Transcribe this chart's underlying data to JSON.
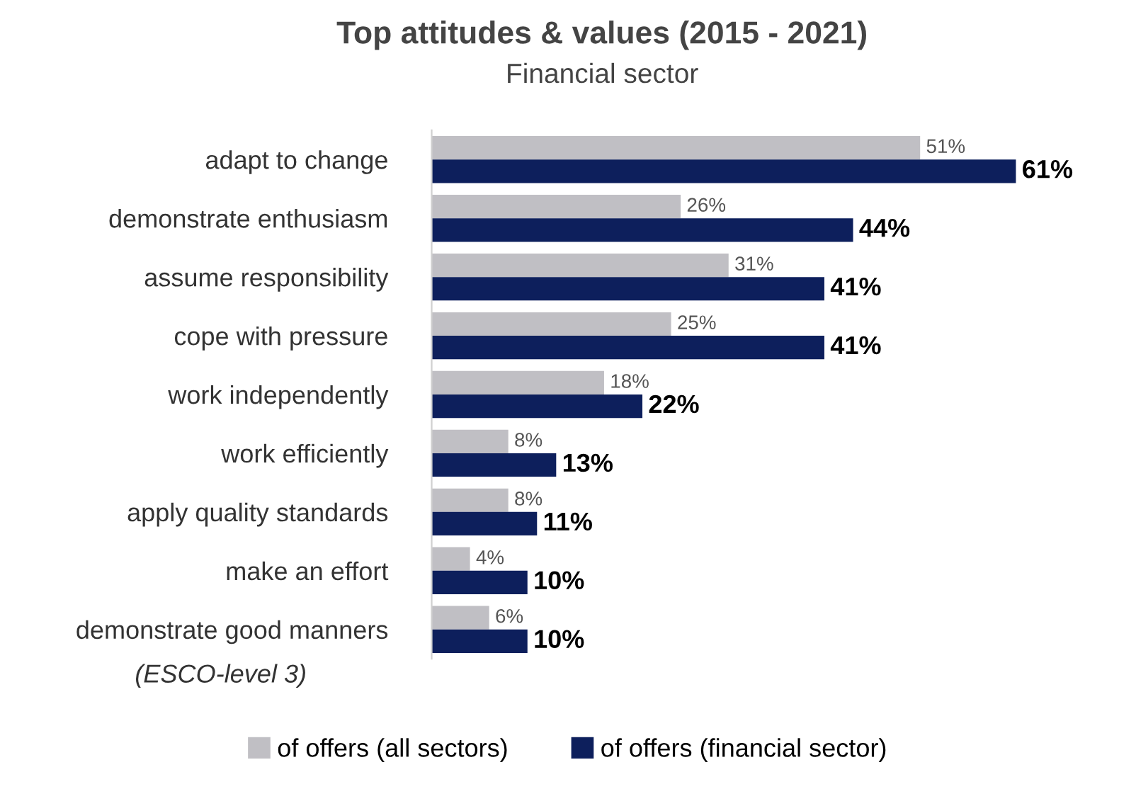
{
  "chart_data": {
    "type": "bar",
    "orientation": "horizontal",
    "title": "Top attitudes & values (2015 - 2021)",
    "subtitle": "Financial sector",
    "categories": [
      "adapt to change",
      "demonstrate enthusiasm",
      "assume responsibility",
      "cope with pressure",
      "work independently",
      "work efficiently",
      "apply quality standards",
      "make an effort",
      "demonstrate good manners"
    ],
    "series": [
      {
        "name": "of offers (all sectors)",
        "color": "#c0bfc4",
        "values": [
          51,
          26,
          31,
          25,
          18,
          8,
          8,
          4,
          6
        ],
        "value_labels": [
          "51%",
          "26%",
          "31%",
          "25%",
          "18%",
          "8%",
          "8%",
          "4%",
          "6%"
        ]
      },
      {
        "name": "of offers (financial sector)",
        "color": "#0d1f5c",
        "values": [
          61,
          44,
          41,
          41,
          22,
          13,
          11,
          10,
          10
        ],
        "value_labels": [
          "61%",
          "44%",
          "41%",
          "41%",
          "22%",
          "13%",
          "11%",
          "10%",
          "10%"
        ]
      }
    ],
    "annotations": [
      "(ESCO-level 3)"
    ],
    "grid": false,
    "legend": "bottom",
    "tick_labels": "y"
  }
}
